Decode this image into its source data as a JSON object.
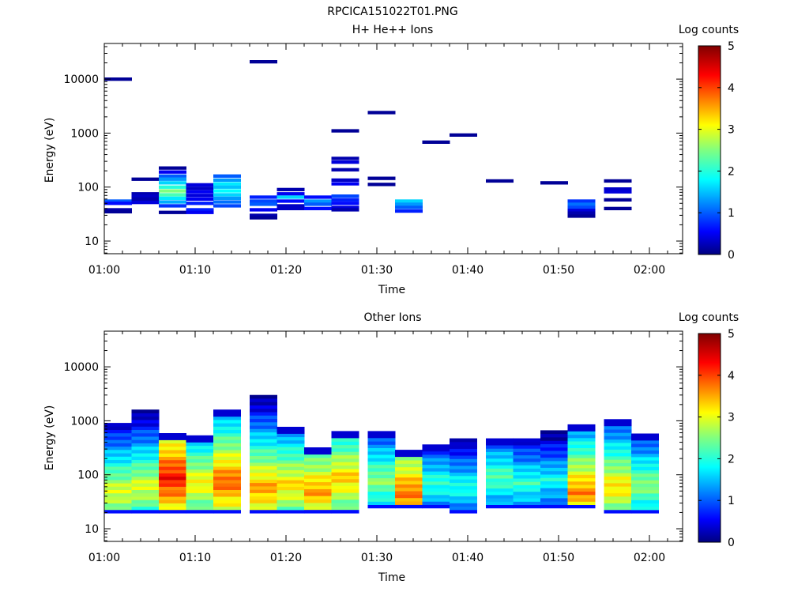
{
  "figure_title": "RPCICA151022T01.PNG",
  "chart_data": [
    {
      "type": "heatmap",
      "title": "H+ He++ Ions",
      "xlabel": "Time",
      "ylabel": "Energy (eV)",
      "x_ticks": [
        "01:00",
        "01:10",
        "01:20",
        "01:30",
        "01:40",
        "01:50",
        "02:00"
      ],
      "x_range_minutes": [
        0,
        63
      ],
      "y_scale": "log",
      "y_range": [
        6,
        45000
      ],
      "y_ticks": [
        "10",
        "100",
        "1000",
        "10000"
      ],
      "colorbar": {
        "label": "Log counts",
        "range": [
          0,
          5
        ],
        "ticks": [
          "0",
          "1",
          "2",
          "3",
          "4",
          "5"
        ]
      },
      "cells": [
        [
          0,
          10000,
          0.1
        ],
        [
          0,
          55,
          1.0
        ],
        [
          0,
          50,
          0.6
        ],
        [
          0,
          38,
          0.2
        ],
        [
          0,
          35,
          0.1
        ],
        [
          3,
          140,
          0.1
        ],
        [
          3,
          75,
          0.2
        ],
        [
          3,
          68,
          0.3
        ],
        [
          3,
          60,
          0.2
        ],
        [
          3,
          52,
          0.4
        ],
        [
          6,
          225,
          0.1
        ],
        [
          6,
          190,
          0.5
        ],
        [
          6,
          160,
          1.0
        ],
        [
          6,
          140,
          1.3
        ],
        [
          6,
          120,
          1.6
        ],
        [
          6,
          100,
          2.0
        ],
        [
          6,
          85,
          2.5
        ],
        [
          6,
          72,
          2.2
        ],
        [
          6,
          62,
          1.7
        ],
        [
          6,
          53,
          1.4
        ],
        [
          6,
          45,
          0.8
        ],
        [
          6,
          34,
          0.1
        ],
        [
          9,
          110,
          0.4
        ],
        [
          9,
          95,
          0.3
        ],
        [
          9,
          82,
          0.5
        ],
        [
          9,
          70,
          0.4
        ],
        [
          9,
          60,
          0.5
        ],
        [
          9,
          50,
          0.7
        ],
        [
          9,
          38,
          0.7
        ],
        [
          9,
          34,
          0.5
        ],
        [
          12,
          160,
          1.0
        ],
        [
          12,
          135,
          1.3
        ],
        [
          12,
          115,
          1.7
        ],
        [
          12,
          100,
          1.5
        ],
        [
          12,
          85,
          1.8
        ],
        [
          12,
          72,
          1.6
        ],
        [
          12,
          62,
          1.3
        ],
        [
          12,
          53,
          1.1
        ],
        [
          12,
          45,
          0.9
        ],
        [
          16,
          21000,
          0.1
        ],
        [
          16,
          65,
          0.7
        ],
        [
          16,
          55,
          0.9
        ],
        [
          16,
          48,
          1.0
        ],
        [
          16,
          38,
          0.5
        ],
        [
          16,
          30,
          0.2
        ],
        [
          16,
          27,
          0.1
        ],
        [
          19,
          90,
          0.2
        ],
        [
          19,
          75,
          0.5
        ],
        [
          19,
          65,
          1.6
        ],
        [
          19,
          55,
          0.6
        ],
        [
          19,
          45,
          0.3
        ],
        [
          19,
          40,
          0.3
        ],
        [
          22,
          65,
          0.6
        ],
        [
          22,
          55,
          1.3
        ],
        [
          22,
          48,
          1.0
        ],
        [
          22,
          40,
          0.6
        ],
        [
          25,
          1100,
          0.1
        ],
        [
          25,
          340,
          0.2
        ],
        [
          25,
          290,
          0.4
        ],
        [
          25,
          210,
          0.2
        ],
        [
          25,
          135,
          0.3
        ],
        [
          25,
          115,
          0.5
        ],
        [
          25,
          68,
          0.9
        ],
        [
          25,
          58,
          0.7
        ],
        [
          25,
          50,
          0.6
        ],
        [
          25,
          42,
          0.4
        ],
        [
          25,
          38,
          0.2
        ],
        [
          29,
          2400,
          0.1
        ],
        [
          29,
          145,
          0.1
        ],
        [
          29,
          112,
          0.1
        ],
        [
          32,
          55,
          1.6
        ],
        [
          32,
          48,
          1.3
        ],
        [
          32,
          42,
          1.0
        ],
        [
          32,
          36,
          0.7
        ],
        [
          35,
          680,
          0.1
        ],
        [
          38,
          920,
          0.1
        ],
        [
          42,
          130,
          0.1
        ],
        [
          48,
          120,
          0.1
        ],
        [
          51,
          55,
          0.8
        ],
        [
          51,
          48,
          1.1
        ],
        [
          51,
          42,
          0.9
        ],
        [
          51,
          37,
          0.4
        ],
        [
          51,
          33,
          0.2
        ],
        [
          51,
          29,
          0.1
        ],
        [
          55,
          130,
          0.1
        ],
        [
          55,
          92,
          0.3
        ],
        [
          55,
          82,
          0.4
        ],
        [
          55,
          58,
          0.1
        ],
        [
          55,
          40,
          0.1
        ]
      ]
    },
    {
      "type": "heatmap",
      "title": "Other Ions",
      "xlabel": "Time",
      "ylabel": "Energy (eV)",
      "x_ticks": [
        "01:00",
        "01:10",
        "01:20",
        "01:30",
        "01:40",
        "01:50",
        "02:00"
      ],
      "x_range_minutes": [
        0,
        63
      ],
      "y_scale": "log",
      "y_range": [
        6,
        45000
      ],
      "y_ticks": [
        "10",
        "100",
        "1000",
        "10000"
      ],
      "colorbar": {
        "label": "Log counts",
        "range": [
          0,
          5
        ],
        "ticks": [
          "0",
          "1",
          "2",
          "3",
          "4",
          "5"
        ]
      },
      "columns": [
        {
          "t": 0,
          "top": 850,
          "bottom": 21,
          "peak": 3.0,
          "peakE": 48
        },
        {
          "t": 3,
          "top": 1500,
          "bottom": 21,
          "peak": 3.0,
          "peakE": 60
        },
        {
          "t": 6,
          "top": 550,
          "bottom": 21,
          "peak": 4.3,
          "peakE": 90
        },
        {
          "t": 9,
          "top": 500,
          "bottom": 21,
          "peak": 3.2,
          "peakE": 70
        },
        {
          "t": 12,
          "top": 1500,
          "bottom": 21,
          "peak": 3.9,
          "peakE": 75
        },
        {
          "t": 16,
          "top": 2800,
          "bottom": 21,
          "peak": 3.6,
          "peakE": 55
        },
        {
          "t": 19,
          "top": 720,
          "bottom": 21,
          "peak": 3.3,
          "peakE": 65
        },
        {
          "t": 22,
          "top": 300,
          "bottom": 21,
          "peak": 3.6,
          "peakE": 50
        },
        {
          "t": 25,
          "top": 600,
          "bottom": 21,
          "peak": 3.4,
          "peakE": 85
        },
        {
          "t": 29,
          "top": 600,
          "bottom": 26,
          "peak": 2.6,
          "peakE": 80
        },
        {
          "t": 32,
          "top": 270,
          "bottom": 26,
          "peak": 3.8,
          "peakE": 48
        },
        {
          "t": 35,
          "top": 340,
          "bottom": 26,
          "peak": 2.1,
          "peakE": 70
        },
        {
          "t": 38,
          "top": 440,
          "bottom": 21,
          "peak": 2.0,
          "peakE": 60
        },
        {
          "t": 42,
          "top": 440,
          "bottom": 26,
          "peak": 2.3,
          "peakE": 90
        },
        {
          "t": 45,
          "top": 440,
          "bottom": 26,
          "peak": 2.1,
          "peakE": 70
        },
        {
          "t": 48,
          "top": 620,
          "bottom": 26,
          "peak": 1.9,
          "peakE": 80
        },
        {
          "t": 51,
          "top": 800,
          "bottom": 26,
          "peak": 3.7,
          "peakE": 48
        },
        {
          "t": 55,
          "top": 1000,
          "bottom": 21,
          "peak": 3.3,
          "peakE": 60
        },
        {
          "t": 58,
          "top": 540,
          "bottom": 21,
          "peak": 2.6,
          "peakE": 65
        }
      ]
    }
  ]
}
